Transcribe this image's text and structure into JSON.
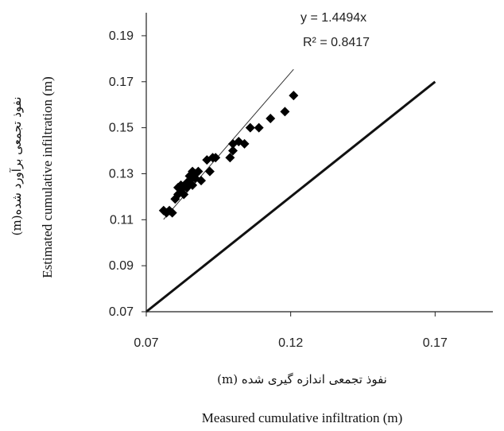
{
  "chart_data": {
    "type": "scatter",
    "title": "",
    "xlabel_fa": "نفوذ تجمعی اندازه گیری شده (m)",
    "xlabel_en": "Measured cumulative infiltration (m)",
    "ylabel_fa": "نفوذ تجمعی برآورد شده(m)",
    "ylabel_en": "Estimated cumulative infiltration (m)",
    "xlim": [
      0.07,
      0.19
    ],
    "ylim": [
      0.07,
      0.2
    ],
    "x_ticks": [
      "0.07",
      "0.12",
      "0.17"
    ],
    "y_ticks": [
      "0.07",
      "0.09",
      "0.11",
      "0.13",
      "0.15",
      "0.17",
      "0.19"
    ],
    "x_tick_values": [
      0.07,
      0.12,
      0.17
    ],
    "y_tick_values": [
      0.07,
      0.09,
      0.11,
      0.13,
      0.15,
      0.17,
      0.19
    ],
    "grid": false,
    "trendline": {
      "slope": 1.4494,
      "x_range": [
        0.076,
        0.121
      ],
      "equation": "y = 1.4494x",
      "r2": "R² = 0.8417"
    },
    "reference_line": {
      "label": "1:1",
      "x_range": [
        0.07,
        0.17
      ]
    },
    "points": [
      [
        0.076,
        0.114
      ],
      [
        0.077,
        0.113
      ],
      [
        0.078,
        0.114
      ],
      [
        0.079,
        0.113
      ],
      [
        0.08,
        0.119
      ],
      [
        0.081,
        0.121
      ],
      [
        0.081,
        0.124
      ],
      [
        0.082,
        0.125
      ],
      [
        0.082,
        0.123
      ],
      [
        0.083,
        0.121
      ],
      [
        0.084,
        0.126
      ],
      [
        0.084,
        0.124
      ],
      [
        0.085,
        0.127
      ],
      [
        0.085,
        0.129
      ],
      [
        0.086,
        0.125
      ],
      [
        0.086,
        0.131
      ],
      [
        0.087,
        0.128
      ],
      [
        0.087,
        0.13
      ],
      [
        0.088,
        0.131
      ],
      [
        0.089,
        0.127
      ],
      [
        0.091,
        0.136
      ],
      [
        0.092,
        0.131
      ],
      [
        0.093,
        0.137
      ],
      [
        0.094,
        0.137
      ],
      [
        0.099,
        0.137
      ],
      [
        0.1,
        0.14
      ],
      [
        0.1,
        0.143
      ],
      [
        0.102,
        0.144
      ],
      [
        0.104,
        0.143
      ],
      [
        0.106,
        0.15
      ],
      [
        0.109,
        0.15
      ],
      [
        0.113,
        0.154
      ],
      [
        0.118,
        0.157
      ],
      [
        0.121,
        0.164
      ]
    ]
  }
}
